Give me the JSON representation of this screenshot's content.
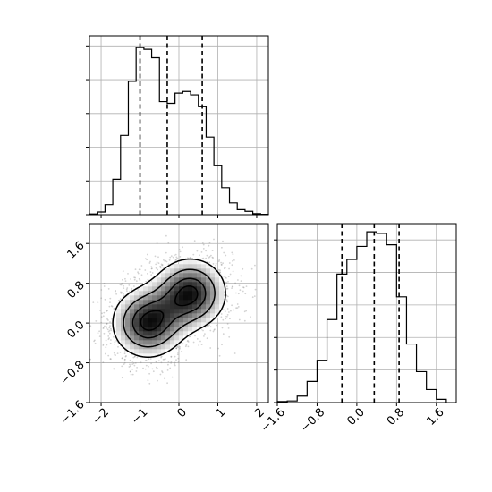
{
  "chart_data": [
    {
      "panel": "histogram-x",
      "type": "bar",
      "style": "step",
      "xlim": [
        -2.3,
        2.3
      ],
      "bin_edges": [
        -2.3,
        -2.1,
        -1.9,
        -1.7,
        -1.5,
        -1.3,
        -1.1,
        -0.9,
        -0.7,
        -0.5,
        -0.3,
        -0.1,
        0.1,
        0.3,
        0.5,
        0.7,
        0.9,
        1.1,
        1.3,
        1.5,
        1.7,
        1.9,
        2.1,
        2.3
      ],
      "values": [
        0.2,
        0.8,
        3.0,
        10.5,
        23.5,
        39.5,
        49.5,
        49.0,
        46.5,
        33.5,
        33.0,
        36.0,
        36.5,
        35.5,
        32.0,
        23.0,
        14.5,
        8.0,
        3.5,
        1.5,
        1.0,
        0.3,
        0.1
      ],
      "ylim": [
        0,
        53
      ],
      "grid": true,
      "quantile_lines": [
        -1.0,
        -0.3,
        0.6
      ],
      "x_ticks": [
        -2,
        -1,
        0,
        1,
        2
      ],
      "y_ticks": [
        0,
        10,
        20,
        30,
        40,
        50
      ],
      "line_color": "#000000"
    },
    {
      "panel": "histogram-y",
      "type": "bar",
      "style": "step",
      "xlim": [
        -1.6,
        2.0
      ],
      "bin_edges": [
        -1.6,
        -1.4,
        -1.2,
        -1.0,
        -0.8,
        -0.6,
        -0.4,
        -0.2,
        0.0,
        0.2,
        0.4,
        0.6,
        0.8,
        1.0,
        1.2,
        1.4,
        1.6,
        1.8
      ],
      "values": [
        0.3,
        0.5,
        2.0,
        6.5,
        13.0,
        25.5,
        39.5,
        44.0,
        48.0,
        52.5,
        52.0,
        48.5,
        32.5,
        18.0,
        9.5,
        4.0,
        1.0
      ],
      "ylim": [
        0,
        55
      ],
      "grid": true,
      "quantile_lines": [
        -0.3,
        0.35,
        0.85
      ],
      "x_ticks": [
        -1.6,
        -0.8,
        0.0,
        0.8,
        1.6
      ],
      "x_tick_labels": [
        "−1.6",
        "−0.8",
        "0.0",
        "0.8",
        "1.6"
      ],
      "y_ticks": [
        0,
        10,
        20,
        30,
        40,
        50
      ],
      "line_color": "#000000"
    },
    {
      "panel": "joint-density",
      "type": "scatter",
      "xlim": [
        -2.3,
        2.3
      ],
      "ylim": [
        -1.6,
        2.0
      ],
      "grid": true,
      "x_ticks": [
        -2,
        -1,
        0,
        1,
        2
      ],
      "x_tick_labels": [
        "−2",
        "−1",
        "0",
        "1",
        "2"
      ],
      "y_ticks": [
        -1.6,
        -0.8,
        0.0,
        0.8,
        1.6
      ],
      "y_tick_labels": [
        "−1.6",
        "−0.8",
        "0.0",
        "0.8",
        "1.6"
      ],
      "components": [
        {
          "mean": [
            -0.8,
            0.0
          ],
          "std": [
            0.55,
            0.42
          ]
        },
        {
          "mean": [
            0.3,
            0.6
          ],
          "std": [
            0.55,
            0.42
          ]
        }
      ],
      "point_color": "#808080",
      "contour_color": "#000000",
      "contour_levels": 4
    }
  ]
}
